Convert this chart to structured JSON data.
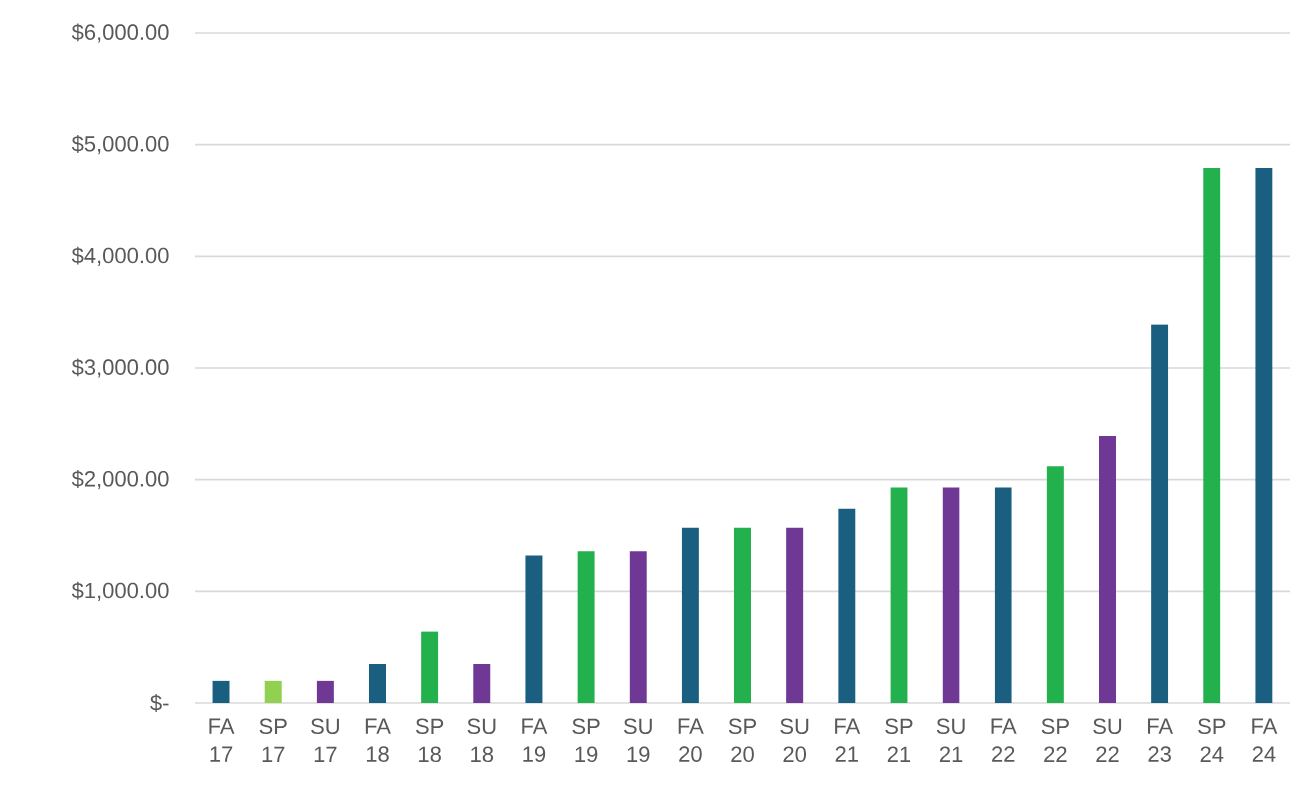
{
  "chart_data": {
    "type": "bar",
    "categories": [
      "FA 17",
      "SP 17",
      "SU 17",
      "FA 18",
      "SP 18",
      "SU 18",
      "FA 19",
      "SP 19",
      "SU 19",
      "FA 20",
      "SP 20",
      "SU 20",
      "FA 21",
      "SP 21",
      "SU 21",
      "FA 22",
      "SP 22",
      "SU 22",
      "FA 23",
      "SP 24",
      "FA 24"
    ],
    "values": [
      200,
      200,
      200,
      350,
      640,
      350,
      1320,
      1360,
      1360,
      1570,
      1570,
      1570,
      1740,
      1930,
      1930,
      1930,
      2120,
      2390,
      3390,
      4790,
      4790
    ],
    "colors": [
      "#1a5f80",
      "#92d050",
      "#6f3894",
      "#1a5f80",
      "#22b14c",
      "#6f3894",
      "#1a5f80",
      "#22b14c",
      "#6f3894",
      "#1a5f80",
      "#22b14c",
      "#6f3894",
      "#1a5f80",
      "#22b14c",
      "#6f3894",
      "#1a5f80",
      "#22b14c",
      "#6f3894",
      "#1a5f80",
      "#22b14c",
      "#1a5f80"
    ],
    "ylim": [
      0,
      6000
    ],
    "yticks": [
      {
        "value": 0,
        "label": "$-"
      },
      {
        "value": 1000,
        "label": "$1,000.00"
      },
      {
        "value": 2000,
        "label": "$2,000.00"
      },
      {
        "value": 3000,
        "label": "$3,000.00"
      },
      {
        "value": 4000,
        "label": "$4,000.00"
      },
      {
        "value": 5000,
        "label": "$5,000.00"
      },
      {
        "value": 6000,
        "label": "$6,000.00"
      }
    ],
    "grid": "y"
  }
}
